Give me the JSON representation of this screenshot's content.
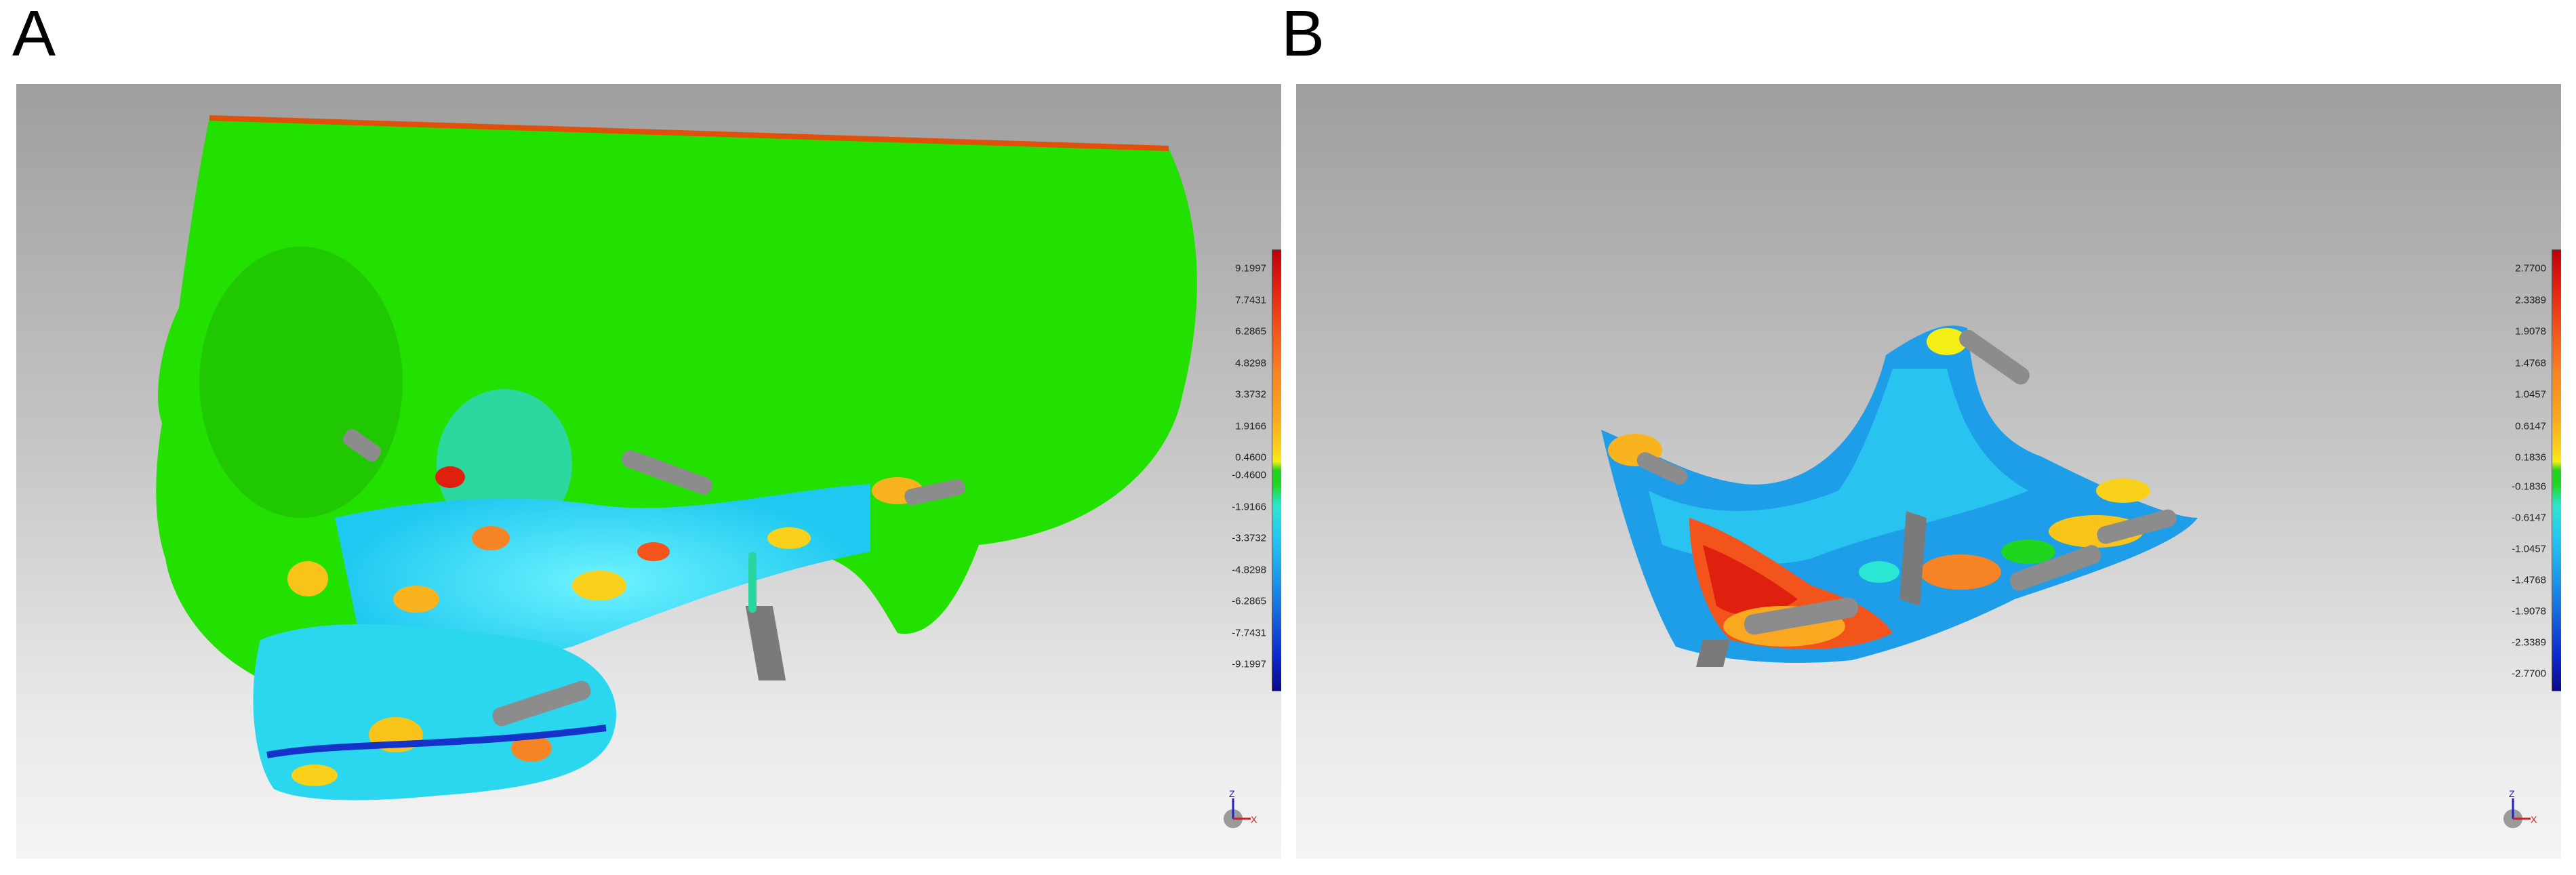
{
  "panels": [
    {
      "label": "A",
      "scale_ticks": [
        "9.1997",
        "7.7431",
        "6.2865",
        "4.8298",
        "3.3732",
        "1.9166",
        "0.4600",
        "-0.4600",
        "-1.9166",
        "-3.3732",
        "-4.8298",
        "-6.2865",
        "-7.7431",
        "-9.1997"
      ],
      "axis_labels": {
        "z": "Z",
        "x": "X"
      }
    },
    {
      "label": "B",
      "scale_ticks": [
        "2.7700",
        "2.3389",
        "1.9078",
        "1.4768",
        "1.0457",
        "0.6147",
        "0.1836",
        "-0.1836",
        "-0.6147",
        "-1.0457",
        "-1.4768",
        "-1.9078",
        "-2.3389",
        "-2.7700"
      ],
      "axis_labels": {
        "z": "Z",
        "x": "X"
      }
    }
  ],
  "colors": {
    "scale": [
      "#c0000a",
      "#e0200e",
      "#f2541b",
      "#f78424",
      "#f9a81f",
      "#fad11a",
      "#f4ee14",
      "#1ed61e",
      "#2be6d2",
      "#22c3f3",
      "#1a90ea",
      "#155ed6",
      "#0f2ad0",
      "#0a0a8a"
    ],
    "bone_green": "#22e000",
    "deviation_cyan": "#27d9ee",
    "plate_gray": "#8c8c8c"
  }
}
